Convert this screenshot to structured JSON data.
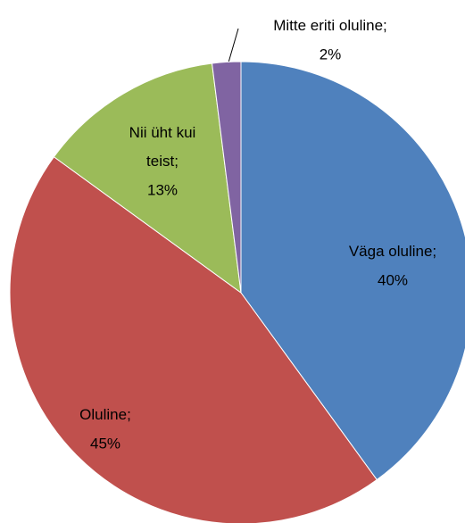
{
  "chart_data": {
    "type": "pie",
    "categories": [
      "Väga oluline;",
      "Oluline;",
      "Nii üht kui teist;",
      "Mitte eriti oluline;"
    ],
    "values": [
      40,
      45,
      13,
      2
    ],
    "value_labels": [
      "40%",
      "45%",
      "13%",
      "2%"
    ],
    "colors": [
      "#4f81bd",
      "#c0504d",
      "#9bbb59",
      "#8064a2"
    ]
  }
}
